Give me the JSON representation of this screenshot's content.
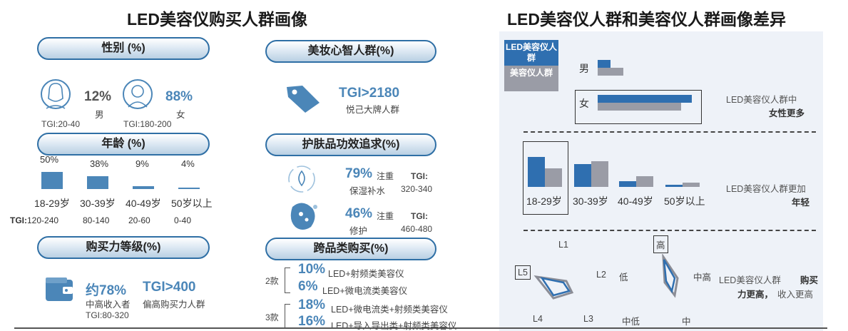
{
  "left": {
    "title": "LED美容仪购买人群画像",
    "gender": {
      "header": "性别 (%)",
      "male_pct": "12%",
      "male_label": "男",
      "male_tgi": "TGI:20-40",
      "female_pct": "88%",
      "female_label": "女",
      "female_tgi": "TGI:180-200"
    },
    "age": {
      "header": "年龄 (%)",
      "tgi_prefix": "TGI:"
    },
    "spend": {
      "header": "购买力等级(%)",
      "pct": "约78%",
      "tgi": "TGI>400",
      "desc1": "中高收入者",
      "desc2": "偏高购买力人群",
      "tgi_range": "TGI:80-320"
    },
    "mindset": {
      "header": "美妆心智人群(%)",
      "tgi": "TGI>2180",
      "desc": "悦己大牌人群"
    },
    "efficacy": {
      "header": "护肤品功效追求(%)",
      "item1_pct": "79%",
      "item1_suffix": "注重",
      "item1_desc": "保湿补水",
      "item1_tgi_label": "TGI:",
      "item1_tgi": "320-340",
      "item2_pct": "46%",
      "item2_suffix": "注重",
      "item2_desc": "修护",
      "item2_tgi_label": "TGI:",
      "item2_tgi": "460-480"
    },
    "cross": {
      "header": "跨品类购买(%)",
      "group1": "2款",
      "group2": "3款",
      "r1_pct": "10%",
      "r1_text": "LED+射频类美容仪",
      "r2_pct": "6%",
      "r2_text": "LED+微电流类美容仪",
      "r3_pct": "18%",
      "r3_text": "LED+微电流类+射频类美容仪",
      "r4_pct": "16%",
      "r4_text": "LED+导入导出类+射频类美容仪"
    }
  },
  "right": {
    "title": "LED美容仪人群和美容仪人群画像差异",
    "legend": [
      "LED美容仪人群",
      "美容仪人群"
    ],
    "gender_note_1": "LED美容仪人群中",
    "gender_note_2": "女性更多",
    "age_note_1": "LED美容仪人群更加",
    "age_note_2": "年轻",
    "radar_note_1a": "LED美容仪人群",
    "radar_note_1b": "购买",
    "radar_note_2a": "力更高，",
    "radar_note_2b": "收入更高",
    "radar_labels": {
      "l1": "L1",
      "l2": "L2",
      "l3": "L3",
      "l4": "L4",
      "l5": "L5",
      "high": "高",
      "midhigh": "中高",
      "mid": "中",
      "midlow": "中低",
      "low": "低"
    }
  },
  "chart_data": [
    {
      "type": "bar",
      "categories": [
        "18-29岁",
        "30-39岁",
        "40-49岁",
        "50岁以上"
      ],
      "values": [
        50,
        38,
        9,
        4
      ],
      "value_labels": [
        "50%",
        "38%",
        "9%",
        "4%"
      ],
      "tgi": [
        "120-240",
        "80-140",
        "20-60",
        "0-40"
      ],
      "colors": {
        "bar": "#4b86b8"
      }
    },
    {
      "type": "bar",
      "orientation": "horizontal",
      "categories": [
        "男",
        "女"
      ],
      "series": [
        {
          "name": "LED美容仪人群",
          "values": [
            12,
            88
          ]
        },
        {
          "name": "美容仪人群",
          "values": [
            24,
            78
          ]
        }
      ],
      "colors": {
        "LED美容仪人群": "#2f6fb0",
        "美容仪人群": "#9a9ca6"
      }
    },
    {
      "type": "bar",
      "categories": [
        "18-29岁",
        "30-39岁",
        "40-49岁",
        "50岁以上"
      ],
      "series": [
        {
          "name": "LED美容仪人群",
          "values": [
            50,
            38,
            9,
            4
          ]
        },
        {
          "name": "美容仪人群",
          "values": [
            31,
            43,
            18,
            7
          ]
        }
      ],
      "colors": {
        "LED美容仪人群": "#2f6fb0",
        "美容仪人群": "#9a9ca6"
      }
    }
  ]
}
